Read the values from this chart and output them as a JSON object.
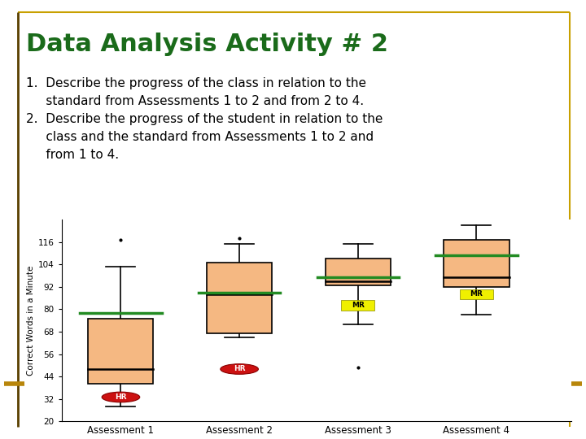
{
  "title": "Data Analysis Activity # 2",
  "title_color": "#1a6b1a",
  "text_block": "1.  Describe the progress of the class in relation to the\n     standard from Assessments 1 to 2 and from 2 to 4.\n2.  Describe the progress of the student in relation to the\n     class and the standard from Assessments 1 to 2 and\n     from 1 to 4.",
  "ylabel": "Correct Words in a Minute",
  "xlabel_labels": [
    "Assessment 1",
    "Assessment 2",
    "Assessment 3",
    "Assessment 4"
  ],
  "ylim": [
    20,
    128
  ],
  "yticks": [
    20,
    32,
    44,
    56,
    68,
    80,
    92,
    104,
    116
  ],
  "box_face": "#f5b882",
  "boxes": [
    {
      "q1": 40,
      "median": 48,
      "q3": 75,
      "whislo": 28,
      "whishi": 103,
      "fliers_high": [
        117
      ],
      "fliers_low": [],
      "green_line": 78,
      "hr_label": 33,
      "mr_label": null
    },
    {
      "q1": 67,
      "median": 88,
      "q3": 105,
      "whislo": 65,
      "whishi": 115,
      "fliers_high": [
        118
      ],
      "fliers_low": [],
      "green_line": 89,
      "hr_label": 48,
      "mr_label": null
    },
    {
      "q1": 93,
      "median": 95,
      "q3": 107,
      "whislo": 72,
      "whishi": 115,
      "fliers_high": [],
      "fliers_low": [
        49
      ],
      "green_line": 97,
      "hr_label": null,
      "mr_label": 82
    },
    {
      "q1": 92,
      "median": 97,
      "q3": 117,
      "whislo": 77,
      "whishi": 125,
      "fliers_high": [],
      "fliers_low": [],
      "green_line": 109,
      "hr_label": null,
      "mr_label": 88
    }
  ],
  "hr_color": "#cc1111",
  "mr_color": "#f0f000",
  "green_line_color": "#228b22",
  "standard_line_color": "#b8860b",
  "background": "#ffffff",
  "border_color_top": "#c8a000",
  "border_color_left": "#5a4000"
}
